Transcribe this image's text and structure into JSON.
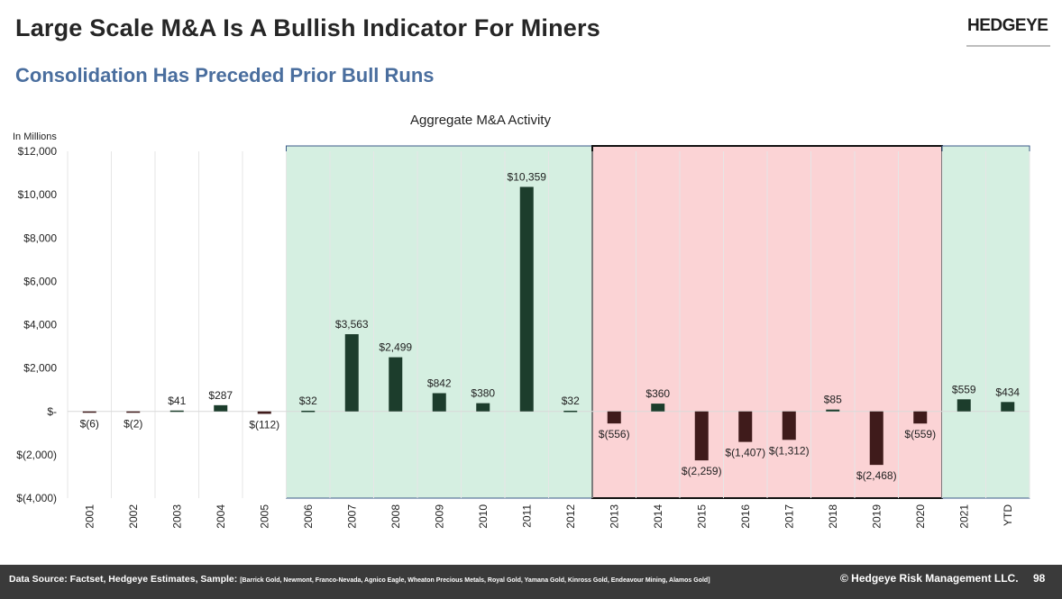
{
  "header": {
    "title": "Large Scale M&A Is A Bullish Indicator For Miners",
    "subtitle": "Consolidation Has Preceded Prior Bull Runs",
    "logo": "HEDGEYE"
  },
  "footer": {
    "source_label": "Data Source: Factset, Hedgeye Estimates, Sample: ",
    "sample_list": "[Barrick Gold, Newmont, Franco-Nevada, Agnico Eagle, Wheaton Precious Metals, Royal Gold, Yamana Gold, Kinross Gold, Endeavour Mining, Alamos Gold]",
    "copyright": "© Hedgeye Risk Management LLC.",
    "page_number": "98"
  },
  "colors": {
    "bar": "#1c3d2c",
    "bar_negative": "#3f1b1b",
    "bull_region": "#d5efe1",
    "bear_region": "#fbd3d5"
  },
  "chart_data": {
    "type": "bar",
    "title": "Aggregate M&A Activity",
    "ylabel": "In Millions",
    "ylim": [
      -4000,
      12000
    ],
    "yticks": [
      12000,
      10000,
      8000,
      6000,
      4000,
      2000,
      0,
      -2000,
      -4000
    ],
    "ytick_labels": [
      "$12,000",
      "$10,000",
      "$8,000",
      "$6,000",
      "$4,000",
      "$2,000",
      "$-",
      "$(2,000)",
      "$(4,000)"
    ],
    "categories": [
      "2001",
      "2002",
      "2003",
      "2004",
      "2005",
      "2006",
      "2007",
      "2008",
      "2009",
      "2010",
      "2011",
      "2012",
      "2013",
      "2014",
      "2015",
      "2016",
      "2017",
      "2018",
      "2019",
      "2020",
      "2021",
      "YTD"
    ],
    "values": [
      -6,
      -2,
      41,
      287,
      -112,
      32,
      3563,
      2499,
      842,
      380,
      10359,
      32,
      -556,
      360,
      -2259,
      -1407,
      -1312,
      85,
      -2468,
      -559,
      559,
      434
    ],
    "data_labels": [
      "$(6)",
      "$(2)",
      "$41",
      "$287",
      "$(112)",
      "$32",
      "$3,563",
      "$2,499",
      "$842",
      "$380",
      "$10,359",
      "$32",
      "$(556)",
      "$360",
      "$(2,259)",
      "$(1,407)",
      "$(1,312)",
      "$85",
      "$(2,468)",
      "$(559)",
      "$559",
      "$434"
    ],
    "shaded_regions": [
      {
        "from": "2006",
        "to": "2012",
        "kind": "bull"
      },
      {
        "from": "2013",
        "to": "2020",
        "kind": "bear"
      },
      {
        "from": "2021",
        "to": "YTD",
        "kind": "bull"
      }
    ]
  }
}
